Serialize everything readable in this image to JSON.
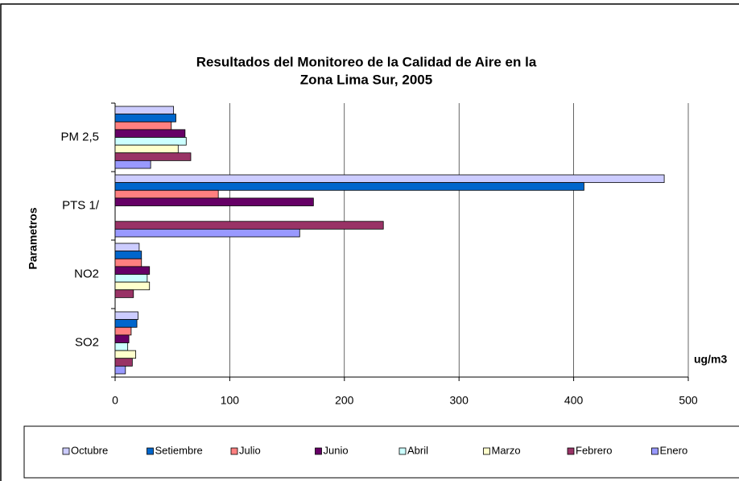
{
  "chart_data": {
    "type": "hbar",
    "title": [
      "Resultados del Monitoreo de la Calidad de Aire en la",
      "Zona Lima Sur, 2005"
    ],
    "y_label": "Parametros",
    "x_unit": "ug/m3",
    "categories": [
      "PM 2,5",
      "PTS 1/",
      "NO2",
      "SO2"
    ],
    "series": [
      {
        "name": "Octubre",
        "color": "#ccccff",
        "values": [
          51,
          479,
          21,
          20
        ]
      },
      {
        "name": "Setiembre",
        "color": "#0066cc",
        "values": [
          53,
          409,
          23,
          19
        ]
      },
      {
        "name": "Julio",
        "color": "#ff8080",
        "values": [
          49,
          90,
          23,
          14
        ]
      },
      {
        "name": "Junio",
        "color": "#660066",
        "values": [
          61,
          173,
          30,
          12
        ]
      },
      {
        "name": "Abril",
        "color": "#ccffff",
        "values": [
          62,
          null,
          28,
          11
        ]
      },
      {
        "name": "Marzo",
        "color": "#ffffcc",
        "values": [
          55,
          null,
          30,
          18
        ]
      },
      {
        "name": "Febrero",
        "color": "#993366",
        "values": [
          66,
          234,
          16,
          15
        ]
      },
      {
        "name": "Enero",
        "color": "#9999ff",
        "values": [
          31,
          161,
          null,
          9
        ]
      }
    ],
    "xlim": [
      0,
      500
    ],
    "xticks": [
      0,
      100,
      200,
      300,
      400,
      500
    ],
    "grid": true
  }
}
